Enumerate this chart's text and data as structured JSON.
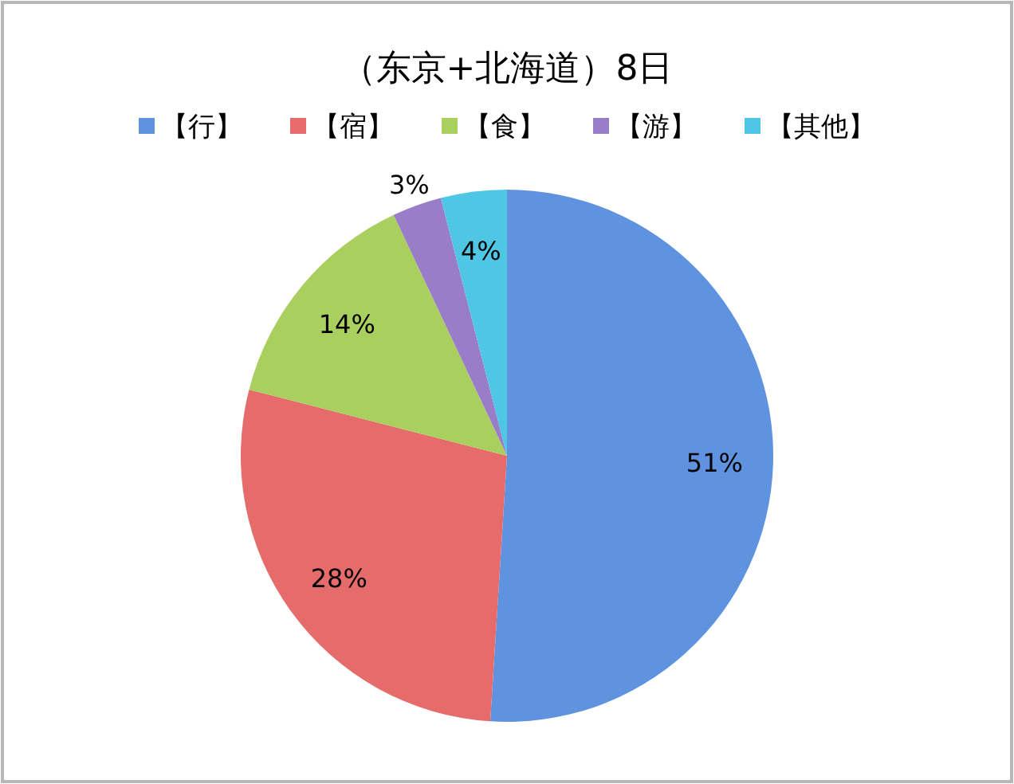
{
  "chart_data": {
    "type": "pie",
    "title": "（东京+北海道）8日",
    "categories": [
      "【行】",
      "【宿】",
      "【食】",
      "【游】",
      "【其他】"
    ],
    "values": [
      51,
      28,
      14,
      3,
      4
    ],
    "colors": [
      "#5f93e0",
      "#e66c6c",
      "#a9cf5e",
      "#9a7dc8",
      "#4fc6e4"
    ],
    "value_labels": [
      "51%",
      "28%",
      "14%",
      "3%",
      "4%"
    ],
    "legend": "top"
  }
}
